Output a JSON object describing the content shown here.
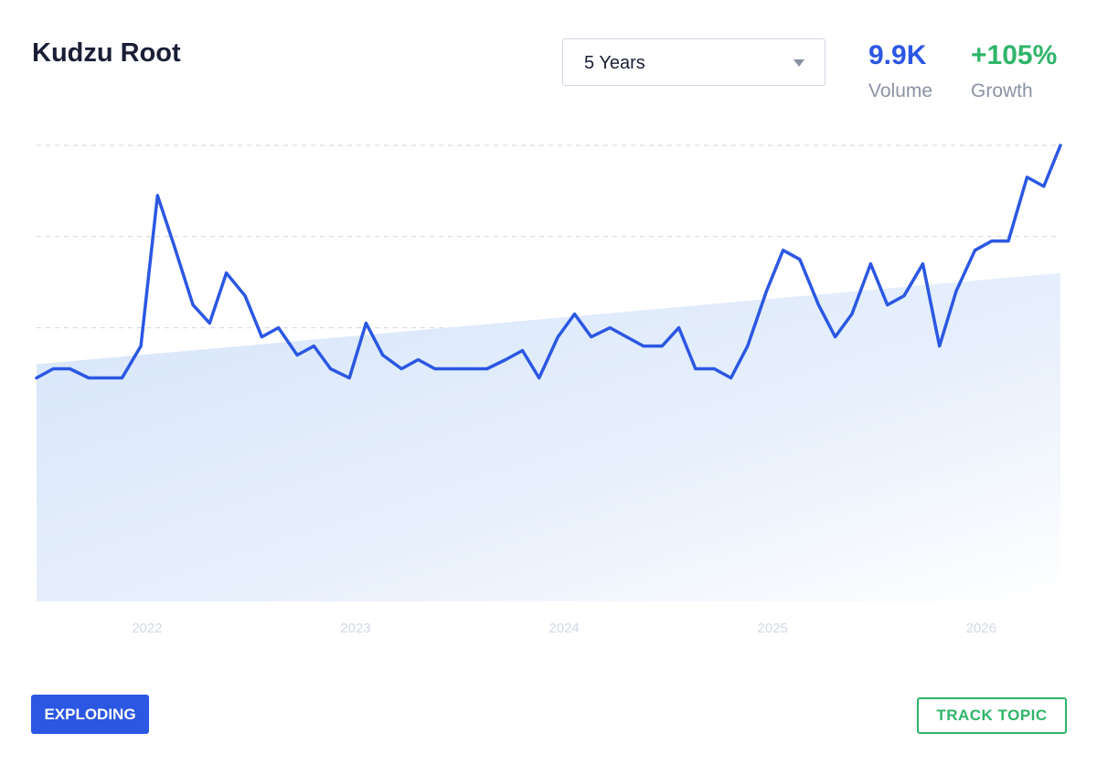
{
  "header": {
    "title": "Kudzu Root",
    "period_select": {
      "value": "5 Years"
    },
    "volume": {
      "value": "9.9K",
      "label": "Volume",
      "color": "#2b57e3"
    },
    "growth": {
      "value": "+105%",
      "label": "Growth",
      "color": "#2fb56a"
    }
  },
  "footer": {
    "status_badge": "EXPLODING",
    "track_button": "TRACK TOPIC"
  },
  "chart_data": {
    "type": "line",
    "title": "",
    "xlabel": "",
    "ylabel": "",
    "x_ticks": [
      "2022",
      "2023",
      "2024",
      "2025",
      "2026"
    ],
    "x": [
      2021.47,
      2021.55,
      2021.63,
      2021.72,
      2021.8,
      2021.88,
      2021.97,
      2022.05,
      2022.13,
      2022.22,
      2022.3,
      2022.38,
      2022.47,
      2022.55,
      2022.63,
      2022.72,
      2022.8,
      2022.88,
      2022.97,
      2023.05,
      2023.13,
      2023.22,
      2023.3,
      2023.38,
      2023.47,
      2023.55,
      2023.63,
      2023.72,
      2023.8,
      2023.88,
      2023.97,
      2024.05,
      2024.13,
      2024.22,
      2024.3,
      2024.38,
      2024.47,
      2024.55,
      2024.63,
      2024.72,
      2024.8,
      2024.88,
      2024.97,
      2025.05,
      2025.13,
      2025.22,
      2025.3,
      2025.38,
      2025.47,
      2025.55,
      2025.63,
      2025.72,
      2025.8,
      2025.88,
      2025.97,
      2026.05,
      2026.13,
      2026.22,
      2026.3,
      2026.38
    ],
    "series": [
      {
        "color": "#2b57e3",
        "values": [
          49,
          51,
          51,
          49,
          49,
          49,
          56,
          89,
          78,
          65,
          61,
          72,
          67,
          58,
          60,
          54,
          56,
          51,
          49,
          61,
          54,
          51,
          53,
          51,
          51,
          51,
          51,
          53,
          55,
          49,
          58,
          63,
          58,
          60,
          58,
          56,
          56,
          60,
          51,
          51,
          49,
          56,
          68,
          77,
          75,
          65,
          58,
          63,
          74,
          65,
          67,
          74,
          56,
          68,
          77,
          79,
          79,
          93,
          91,
          100
        ]
      }
    ],
    "trend": {
      "start": 52,
      "end": 72
    },
    "ylim": [
      0,
      100
    ],
    "grid": true,
    "legend": "none"
  }
}
